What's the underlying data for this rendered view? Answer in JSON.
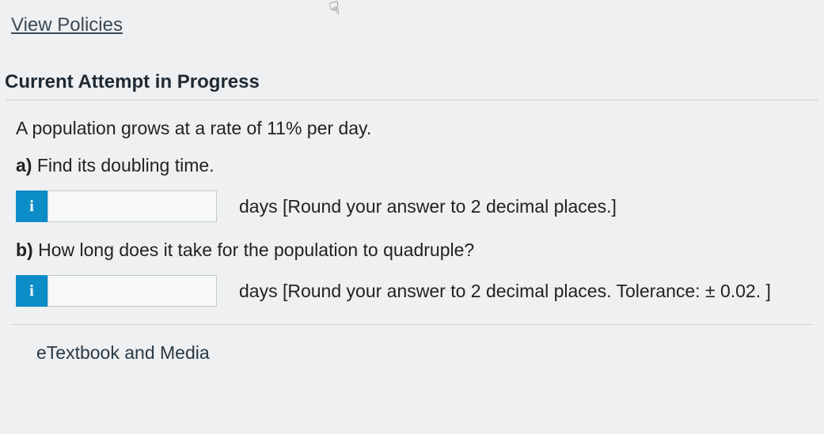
{
  "links": {
    "view_policies": "View Policies",
    "etextbook": "eTextbook and Media"
  },
  "heading": "Current Attempt in Progress",
  "question": {
    "intro": "A population grows at a rate of 11% per day.",
    "parts": {
      "a": {
        "label_prefix": "a)",
        "label_text": " Find its doubling time.",
        "hint": "days [Round your answer to 2 decimal places.]",
        "value": ""
      },
      "b": {
        "label_prefix": "b)",
        "label_text": " How long does it take for the population to quadruple?",
        "hint": "days [Round your answer to 2 decimal places. Tolerance: ± 0.02. ]",
        "value": ""
      }
    }
  },
  "info_glyph": "i"
}
